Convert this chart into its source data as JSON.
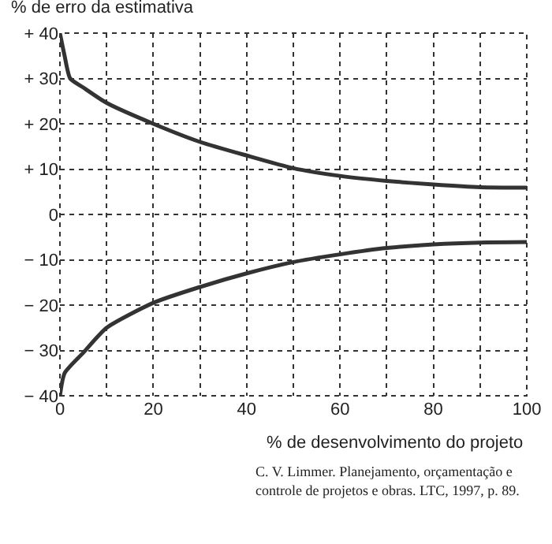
{
  "chart_data": {
    "type": "line",
    "ylabel": "% de erro da estimativa",
    "xlabel": "% de desenvolvimento do projeto",
    "annotations": [
      "C. V. Limmer. Planejamento, orçamentação e controle de projetos e obras. LTC, 1997, p. 89."
    ],
    "series": [
      {
        "color": "#333333",
        "x": [
          0,
          1,
          2.2,
          5,
          10,
          20,
          30,
          40,
          50,
          60,
          70,
          80,
          90,
          100
        ],
        "values": [
          40,
          35,
          30,
          28,
          24.6,
          20,
          16,
          13,
          10.2,
          8.5,
          7.4,
          6.6,
          6,
          5.9
        ]
      },
      {
        "color": "#333333",
        "x": [
          0,
          1,
          5,
          10,
          20,
          30,
          40,
          50,
          60,
          70,
          80,
          90,
          100
        ],
        "values": [
          -40,
          -35,
          -30.5,
          -25,
          -19.5,
          -16,
          -13,
          -10.5,
          -8.8,
          -7.4,
          -6.6,
          -6.2,
          -6.1
        ]
      }
    ],
    "xlim": [
      0,
      100
    ],
    "xticks": [
      0,
      {
        "value": 10,
        "label": null
      },
      20,
      {
        "value": 30,
        "label": null
      },
      40,
      {
        "value": 50,
        "label": null
      },
      60,
      {
        "value": 70,
        "label": null
      },
      80,
      {
        "value": 90,
        "label": null
      },
      100
    ],
    "ylim": [
      -40,
      40
    ],
    "yticks": [
      {
        "value": 40,
        "label": "+ 40"
      },
      {
        "value": 30,
        "label": "+ 30"
      },
      {
        "value": 20,
        "label": "+ 20"
      },
      {
        "value": 10,
        "label": "+ 10"
      },
      0,
      {
        "value": -10,
        "label": "− 10"
      },
      {
        "value": -20,
        "label": "− 20"
      },
      {
        "value": -30,
        "label": "− 30"
      },
      {
        "value": -40,
        "label": "− 40"
      }
    ],
    "grid": true,
    "line_style": "solid",
    "marker": "none"
  }
}
